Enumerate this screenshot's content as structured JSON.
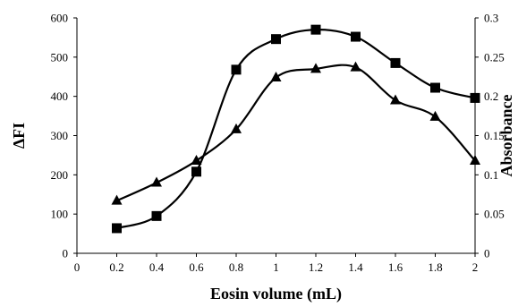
{
  "chart_data": {
    "type": "line",
    "xlabel": "Eosin volume (mL)",
    "ylabel": "ΔFI",
    "y2label": "Absorbance",
    "xlim": [
      0,
      2
    ],
    "ylim": [
      0,
      600
    ],
    "y2lim": [
      0,
      0.3
    ],
    "x_ticks": [
      "0",
      "0.2",
      "0.4",
      "0.6",
      "0.8",
      "1",
      "1.2",
      "1.4",
      "1.6",
      "1.8",
      "2"
    ],
    "y_ticks": [
      "0",
      "100",
      "200",
      "300",
      "400",
      "500",
      "600"
    ],
    "y2_ticks": [
      "0",
      "0.05",
      "0.1",
      "0.15",
      "0.2",
      "0.25",
      "0.3"
    ],
    "grid": false,
    "legend": "none",
    "series": [
      {
        "marker": "square",
        "axis": "left",
        "x": [
          0.2,
          0.4,
          0.6,
          0.8,
          1.0,
          1.2,
          1.4,
          1.6,
          1.8,
          2.0
        ],
        "y": [
          64,
          95,
          208,
          468,
          546,
          570,
          552,
          485,
          422,
          396
        ]
      },
      {
        "marker": "triangle",
        "axis": "right",
        "x": [
          0.2,
          0.4,
          0.6,
          0.8,
          1.0,
          1.2,
          1.4,
          1.6,
          1.8,
          2.0
        ],
        "y": [
          0.067,
          0.09,
          0.118,
          0.158,
          0.224,
          0.235,
          0.237,
          0.195,
          0.174,
          0.118
        ]
      }
    ]
  }
}
